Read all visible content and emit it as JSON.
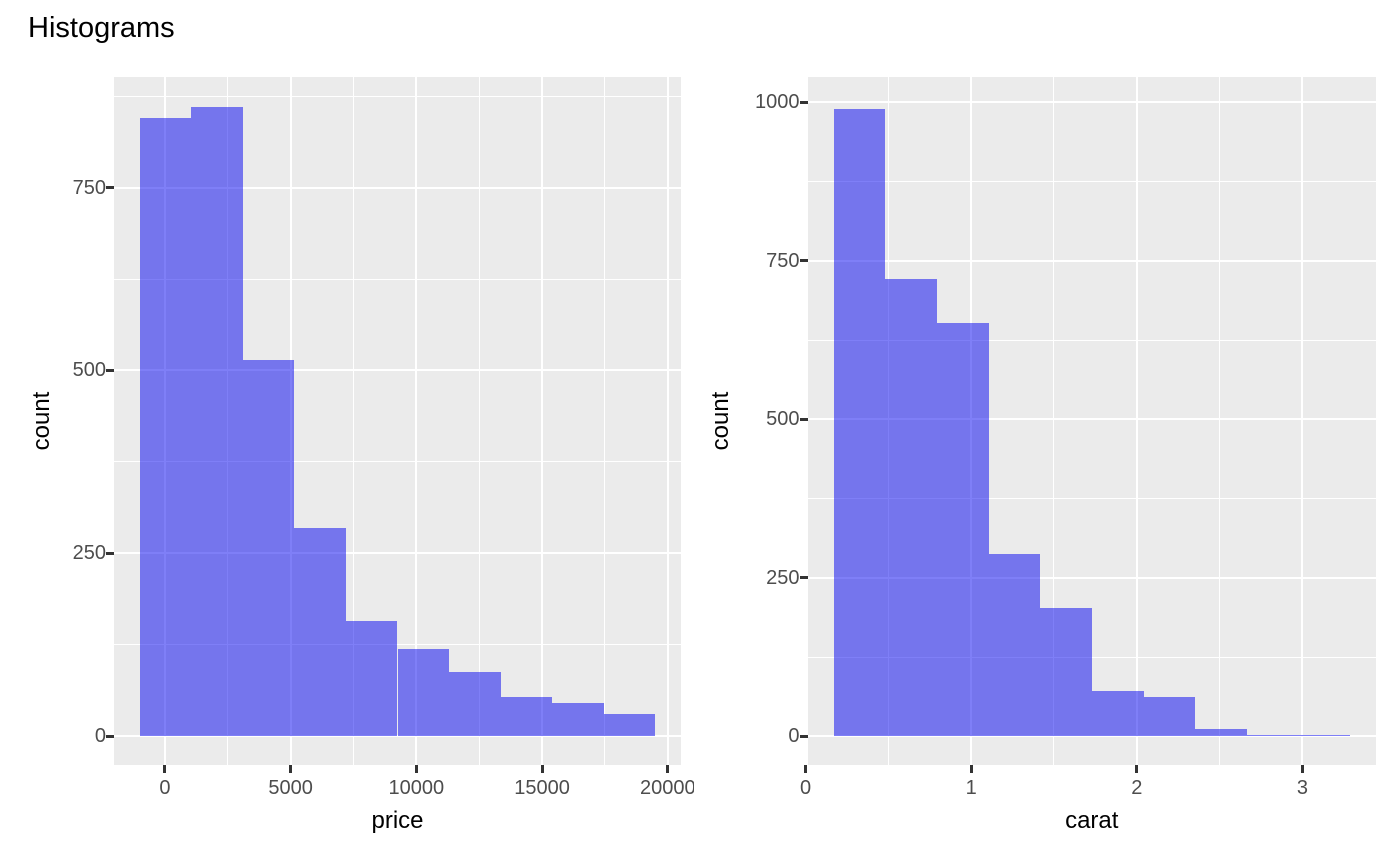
{
  "title": "Histograms",
  "style": {
    "bar_fill": "rgba(0,0,240,0.5)",
    "panel_bg": "#EBEBEB",
    "grid_color": "#FFFFFF",
    "tick_label_color": "#4D4D4D",
    "axis_title_color": "#000000",
    "title_color": "#000000",
    "tick_mark_color": "#333333"
  },
  "chart_data": [
    {
      "type": "bar",
      "variant": "histogram",
      "title": "",
      "xlabel": "price",
      "ylabel": "count",
      "bin_start": -1000,
      "bin_width": 2050,
      "counts": [
        845,
        860,
        515,
        285,
        158,
        120,
        88,
        54,
        46,
        30
      ],
      "x_ticks": {
        "values": [
          0,
          5000,
          10000,
          15000,
          20000
        ],
        "labels": [
          "0",
          "5000",
          "10000",
          "15000",
          "20000"
        ]
      },
      "y_ticks": {
        "values": [
          0,
          250,
          500,
          750
        ],
        "labels": [
          "0",
          "250",
          "500",
          "750"
        ]
      },
      "xlim": [
        -2025,
        20525
      ],
      "ylim": [
        -39,
        901
      ],
      "grid": true,
      "legend": "none"
    },
    {
      "type": "bar",
      "variant": "histogram",
      "title": "",
      "xlabel": "carat",
      "ylabel": "count",
      "bin_start": 0.169,
      "bin_width": 0.312,
      "counts": [
        990,
        722,
        652,
        287,
        202,
        72,
        63,
        12,
        2,
        2
      ],
      "x_ticks": {
        "values": [
          0,
          1,
          2,
          3
        ],
        "labels": [
          "0",
          "1",
          "2",
          "3"
        ]
      },
      "y_ticks": {
        "values": [
          0,
          250,
          500,
          750,
          1000
        ],
        "labels": [
          "0",
          "250",
          "500",
          "750",
          "1000"
        ]
      },
      "xlim": [
        0.012,
        3.444
      ],
      "ylim": [
        -45,
        1040
      ],
      "grid": true,
      "legend": "none"
    }
  ]
}
